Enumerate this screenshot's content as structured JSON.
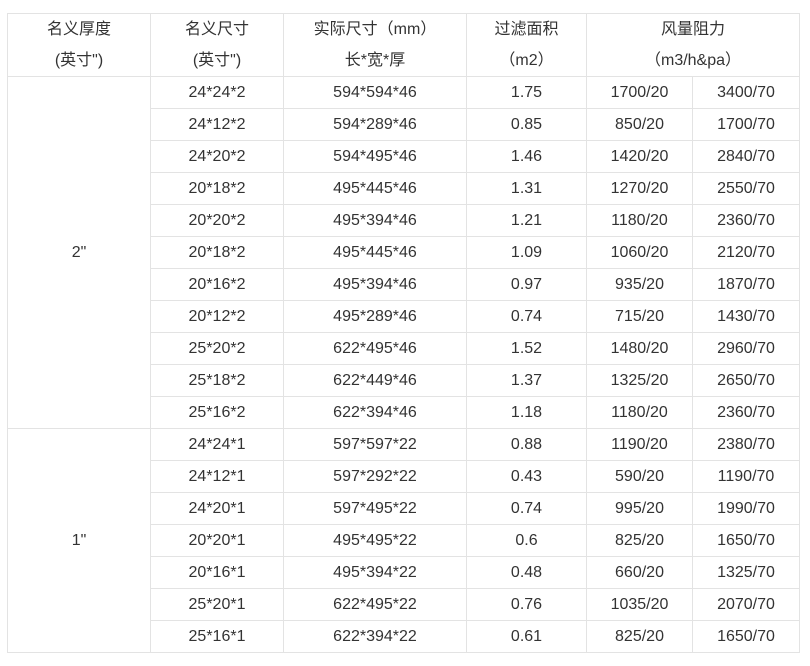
{
  "headers": {
    "thickness": [
      "名义厚度",
      "(英寸\")"
    ],
    "nominal": [
      "名义尺寸",
      "(英寸\")"
    ],
    "actual": [
      "实际尺寸（mm）",
      "长*宽*厚"
    ],
    "area": [
      "过滤面积",
      "（m2）"
    ],
    "airflow": [
      "风量阻力",
      "（m3/h&pa）"
    ]
  },
  "groups": [
    {
      "thickness": "2\"",
      "rows": [
        [
          "24*24*2",
          "594*594*46",
          "1.75",
          "1700/20",
          "3400/70"
        ],
        [
          "24*12*2",
          "594*289*46",
          "0.85",
          "850/20",
          "1700/70"
        ],
        [
          "24*20*2",
          "594*495*46",
          "1.46",
          "1420/20",
          "2840/70"
        ],
        [
          "20*18*2",
          "495*445*46",
          "1.31",
          "1270/20",
          "2550/70"
        ],
        [
          "20*20*2",
          "495*394*46",
          "1.21",
          "1180/20",
          "2360/70"
        ],
        [
          "20*18*2",
          "495*445*46",
          "1.09",
          "1060/20",
          "2120/70"
        ],
        [
          "20*16*2",
          "495*394*46",
          "0.97",
          "935/20",
          "1870/70"
        ],
        [
          "20*12*2",
          "495*289*46",
          "0.74",
          "715/20",
          "1430/70"
        ],
        [
          "25*20*2",
          "622*495*46",
          "1.52",
          "1480/20",
          "2960/70"
        ],
        [
          "25*18*2",
          "622*449*46",
          "1.37",
          "1325/20",
          "2650/70"
        ],
        [
          "25*16*2",
          "622*394*46",
          "1.18",
          "1180/20",
          "2360/70"
        ]
      ]
    },
    {
      "thickness": "1\"",
      "rows": [
        [
          "24*24*1",
          "597*597*22",
          "0.88",
          "1190/20",
          "2380/70"
        ],
        [
          "24*12*1",
          "597*292*22",
          "0.43",
          "590/20",
          "1190/70"
        ],
        [
          "24*20*1",
          "597*495*22",
          "0.74",
          "995/20",
          "1990/70"
        ],
        [
          "20*20*1",
          "495*495*22",
          "0.6",
          "825/20",
          "1650/70"
        ],
        [
          "20*16*1",
          "495*394*22",
          "0.48",
          "660/20",
          "1325/70"
        ],
        [
          "25*20*1",
          "622*495*22",
          "0.76",
          "1035/20",
          "2070/70"
        ],
        [
          "25*16*1",
          "622*394*22",
          "0.61",
          "825/20",
          "1650/70"
        ]
      ]
    }
  ]
}
